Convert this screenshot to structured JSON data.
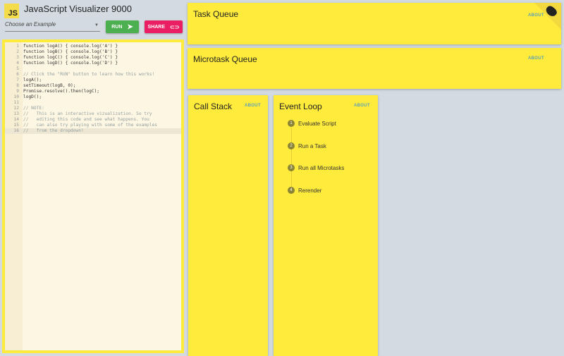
{
  "header": {
    "logo": "JS",
    "title": "JavaScript Visualizer 9000"
  },
  "example_select": {
    "placeholder": "Choose an Example"
  },
  "buttons": {
    "run": "RUN",
    "share": "SHARE"
  },
  "editor": {
    "lines": [
      "function logA() { console.log('A') }",
      "function logB() { console.log('B') }",
      "function logC() { console.log('C') }",
      "function logD() { console.log('D') }",
      "",
      "// Click the \"RUN\" button to learn how this works!",
      "logA();",
      "setTimeout(logB, 0);",
      "Promise.resolve().then(logC);",
      "logD();",
      "",
      "// NOTE:",
      "//   This is an interactive vizualization. So try",
      "//   editing this code and see what happens. You",
      "//   can also try playing with some of the examples",
      "//   from the dropdown!"
    ],
    "active_line": 16
  },
  "task_queue": {
    "title": "Task Queue",
    "about": "ABOUT"
  },
  "microtask_queue": {
    "title": "Microtask Queue",
    "about": "ABOUT"
  },
  "call_stack": {
    "title": "Call Stack",
    "about": "ABOUT"
  },
  "event_loop": {
    "title": "Event Loop",
    "about": "ABOUT",
    "steps": [
      {
        "num": "1",
        "label": "Evaluate Script"
      },
      {
        "num": "2",
        "label": "Run a Task"
      },
      {
        "num": "3",
        "label": "Run all Microtasks"
      },
      {
        "num": "4",
        "label": "Rerender"
      }
    ]
  },
  "colors": {
    "card": "#ffeb3b",
    "run": "#4caf50",
    "share": "#e91e63",
    "background": "#d3dae1"
  }
}
